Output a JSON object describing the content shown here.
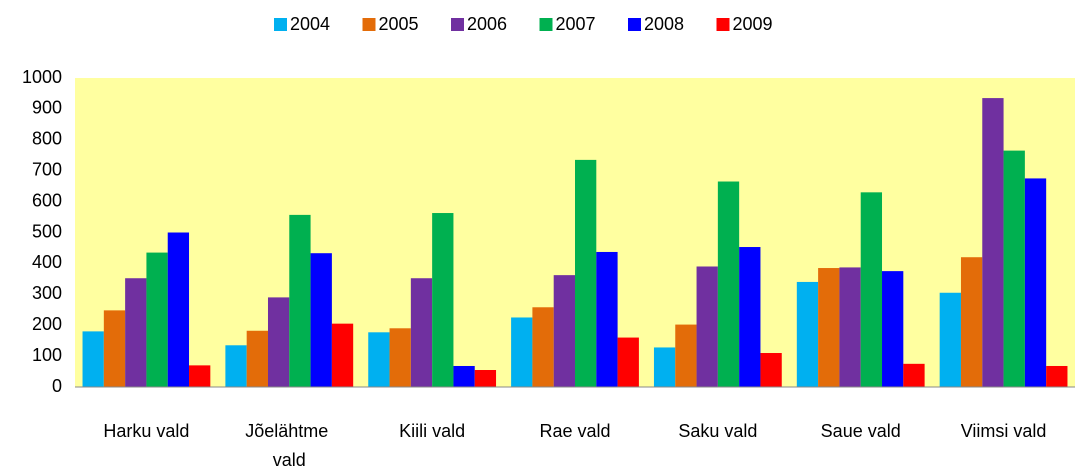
{
  "chart_data": {
    "type": "bar",
    "categories": [
      "Harku vald",
      "Jõelähtme vald",
      "Kiili vald",
      "Rae vald",
      "Saku vald",
      "Saue vald",
      "Viimsi vald"
    ],
    "series": [
      {
        "name": "2004",
        "color": "#00b0f0",
        "values": [
          180,
          135,
          177,
          225,
          128,
          340,
          305
        ]
      },
      {
        "name": "2005",
        "color": "#e36c09",
        "values": [
          248,
          182,
          190,
          258,
          202,
          385,
          420
        ]
      },
      {
        "name": "2006",
        "color": "#7030a0",
        "values": [
          352,
          290,
          352,
          362,
          390,
          387,
          935
        ]
      },
      {
        "name": "2007",
        "color": "#00b050",
        "values": [
          435,
          557,
          563,
          735,
          665,
          630,
          765
        ]
      },
      {
        "name": "2008",
        "color": "#0000ff",
        "values": [
          500,
          433,
          68,
          437,
          453,
          375,
          675
        ]
      },
      {
        "name": "2009",
        "color": "#ff0000",
        "values": [
          70,
          205,
          55,
          160,
          110,
          75,
          68
        ]
      }
    ],
    "ylim": [
      0,
      1000
    ],
    "yticks": [
      0,
      100,
      200,
      300,
      400,
      500,
      600,
      700,
      800,
      900,
      1000
    ],
    "grid": false,
    "legend": "top",
    "plot_background": "#ffffa0"
  }
}
